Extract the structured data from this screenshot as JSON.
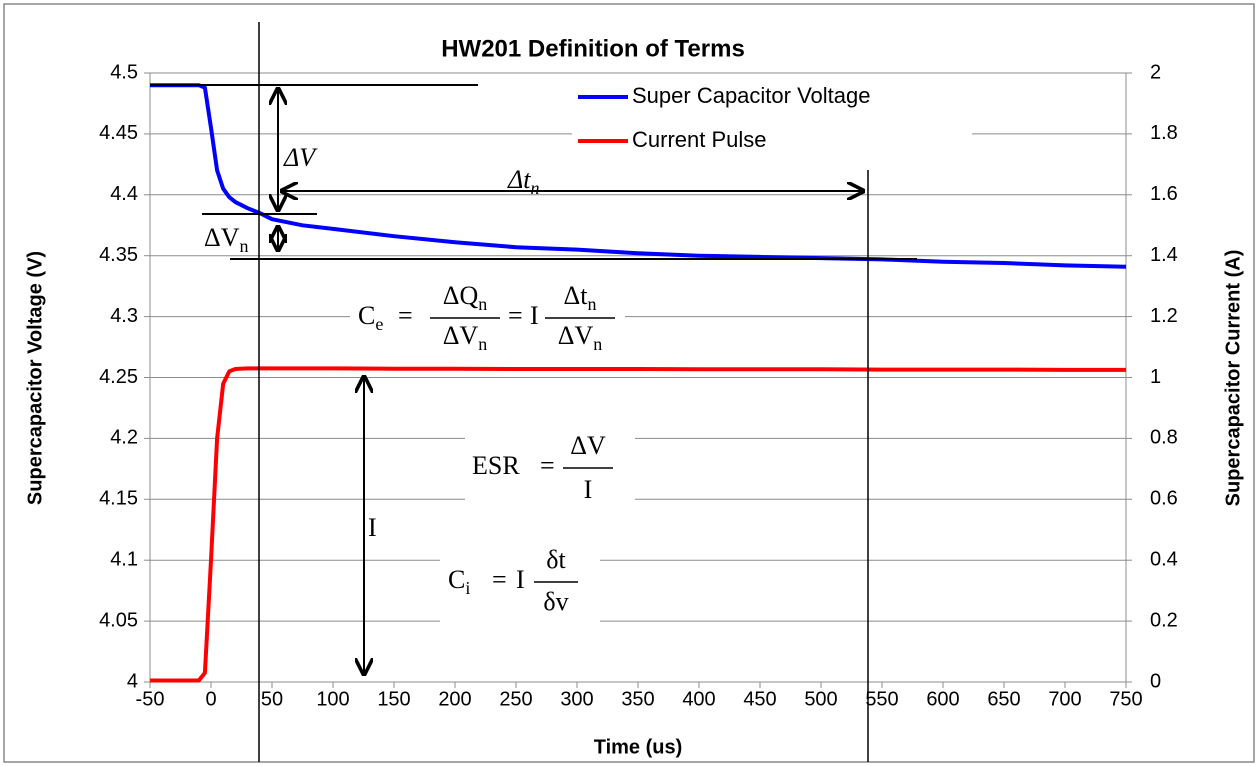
{
  "chart_data": {
    "type": "line",
    "title": "HW201 Definition of Terms",
    "xlabel": "Time (us)",
    "ylabel": "Supercapacitor Voltage (V)",
    "y2label": "Supercapacitor Current (A)",
    "x": [
      -50,
      -10,
      -5,
      0,
      5,
      10,
      15,
      20,
      30,
      40,
      50,
      75,
      100,
      150,
      200,
      250,
      300,
      350,
      400,
      450,
      500,
      550,
      600,
      650,
      700,
      750
    ],
    "series": [
      {
        "name": "Super Capacitor Voltage",
        "color": "#0000ff",
        "axis": "y",
        "values": [
          4.49,
          4.49,
          4.488,
          4.455,
          4.42,
          4.405,
          4.398,
          4.394,
          4.389,
          4.385,
          4.38,
          4.375,
          4.372,
          4.366,
          4.361,
          4.357,
          4.355,
          4.352,
          4.35,
          4.349,
          4.348,
          4.347,
          4.345,
          4.344,
          4.342,
          4.341
        ]
      },
      {
        "name": "Current Pulse",
        "color": "#ff0000",
        "axis": "y2",
        "values": [
          0.005,
          0.005,
          0.03,
          0.4,
          0.8,
          0.98,
          1.02,
          1.028,
          1.03,
          1.03,
          1.03,
          1.03,
          1.03,
          1.029,
          1.029,
          1.028,
          1.028,
          1.028,
          1.027,
          1.027,
          1.027,
          1.026,
          1.026,
          1.026,
          1.025,
          1.025
        ]
      }
    ],
    "xlim": [
      -50,
      750
    ],
    "xticks": [
      -50,
      0,
      50,
      100,
      150,
      200,
      250,
      300,
      350,
      400,
      450,
      500,
      550,
      600,
      650,
      700,
      750
    ],
    "ylim": [
      4,
      4.5
    ],
    "yticks": [
      4,
      4.05,
      4.1,
      4.15,
      4.2,
      4.25,
      4.3,
      4.35,
      4.4,
      4.45,
      4.5
    ],
    "y2lim": [
      0,
      2
    ],
    "y2ticks": [
      0,
      0.2,
      0.4,
      0.6,
      0.8,
      1,
      1.2,
      1.4,
      1.6,
      1.8,
      2
    ],
    "grid": true,
    "legend": "top",
    "annotations": {
      "dv": "ΔV",
      "dtn": {
        "main": "Δt",
        "sub": "n"
      },
      "dvn": {
        "main": "ΔV",
        "sub": "n"
      },
      "current": "I",
      "ce": {
        "lhs": "C",
        "lhs_sub": "e",
        "eq": "=",
        "num1": "ΔQ",
        "num1_sub": "n",
        "den1": "ΔV",
        "den1_sub": "n",
        "eq2": "=",
        "mult": "I",
        "num2": "Δt",
        "num2_sub": "n",
        "den2": "ΔV",
        "den2_sub": "n"
      },
      "esr": {
        "lhs": "ESR",
        "eq": "=",
        "num": "ΔV",
        "den": "I"
      },
      "ci": {
        "lhs": "C",
        "lhs_sub": "i",
        "eq": "=",
        "mult": "I",
        "num": "δt",
        "den": "δv"
      }
    }
  }
}
